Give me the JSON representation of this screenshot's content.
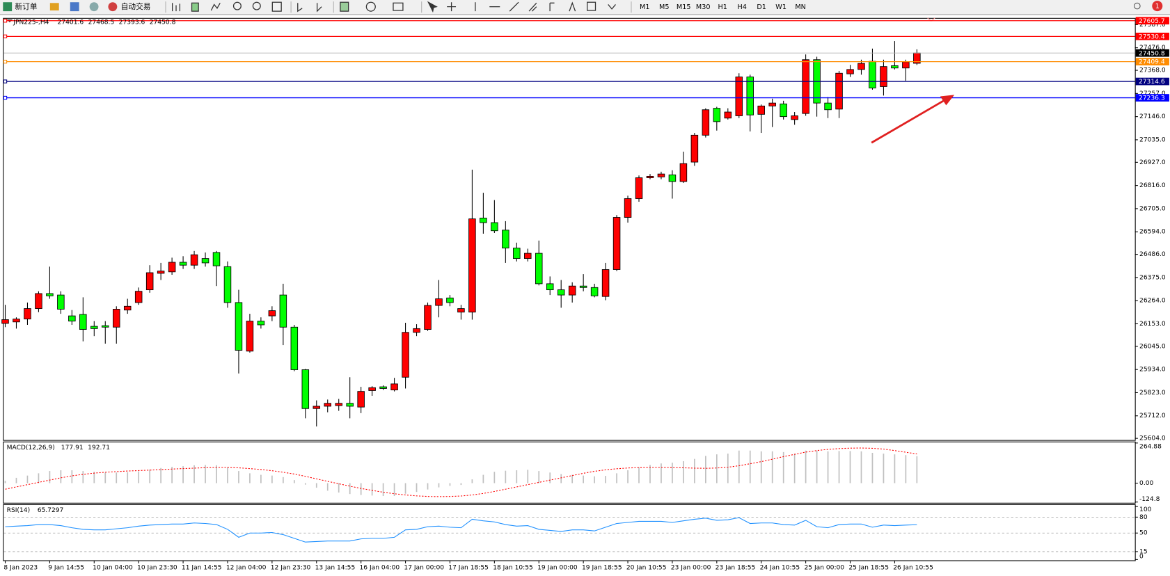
{
  "toolbar": {
    "new_order": "新订单",
    "auto_trading": "自动交易",
    "timeframes": [
      "M1",
      "M5",
      "M15",
      "M30",
      "H1",
      "H4",
      "D1",
      "W1",
      "MN"
    ],
    "badge": "1"
  },
  "chart_data": [
    {
      "type": "candlestick",
      "title": "JPN225-,H4",
      "categories": [
        "8 Jan 2023",
        null,
        null,
        null,
        "9 Jan 14:55",
        null,
        null,
        null,
        "10 Jan 04:00",
        null,
        null,
        null,
        "10 Jan 23:30",
        null,
        null,
        null,
        "11 Jan 14:55",
        null,
        null,
        null,
        "12 Jan 04:00",
        null,
        null,
        null,
        "12 Jan 23:30",
        null,
        null,
        null,
        "13 Jan 14:55",
        null,
        null,
        null,
        "16 Jan 04:00",
        null,
        null,
        null,
        "17 Jan 00:00",
        null,
        null,
        null,
        "17 Jan 18:55",
        null,
        null,
        null,
        "18 Jan 10:55",
        null,
        null,
        null,
        "19 Jan 00:00",
        null,
        null,
        null,
        "19 Jan 18:55",
        null,
        null,
        null,
        "20 Jan 10:55",
        null,
        null,
        null,
        "23 Jan 00:00",
        null,
        null,
        null,
        "23 Jan 18:55",
        null,
        null,
        null,
        "24 Jan 10:55",
        null,
        null,
        null,
        "25 Jan 00:00",
        null,
        null,
        null,
        "25 Jan 18:55",
        null,
        null,
        null,
        "26 Jan 10:55",
        null,
        null
      ],
      "open": [
        26155,
        26162,
        26176,
        26226,
        26298,
        26291,
        26191,
        26198,
        26141,
        26144,
        26137,
        26219,
        26255,
        26316,
        26395,
        26402,
        26448,
        26434,
        26466,
        26495,
        26427,
        26255,
        26022,
        26166,
        26191,
        26291,
        26137,
        25933,
        25747,
        25758,
        25761,
        25772,
        25754,
        25833,
        25851,
        25836,
        25897,
        26112,
        26126,
        26241,
        26277,
        26209,
        26209,
        26660,
        26638,
        26602,
        26516,
        26466,
        26491,
        26345,
        26316,
        26291,
        26334,
        26327,
        26284,
        26413,
        26663,
        26753,
        26853,
        26857,
        26867,
        26835,
        26928,
        27057,
        27186,
        27139,
        27150,
        27336,
        27157,
        27197,
        27207,
        27132,
        27161,
        27419,
        27211,
        27182,
        27351,
        27372,
        27411,
        27290,
        27390,
        27379,
        27401.6
      ],
      "high": [
        26244,
        26184,
        26255,
        26309,
        26427,
        26309,
        26219,
        26280,
        26166,
        26166,
        26237,
        26273,
        26327,
        26434,
        26445,
        26470,
        26477,
        26502,
        26495,
        26502,
        26452,
        26316,
        26201,
        26184,
        26237,
        26345,
        26148,
        25937,
        25786,
        25790,
        25793,
        25897,
        25851,
        25854,
        25858,
        25894,
        26158,
        26151,
        26255,
        26363,
        26291,
        26244,
        26892,
        26781,
        26746,
        26645,
        26542,
        26513,
        26552,
        26380,
        26363,
        26352,
        26391,
        26345,
        26445,
        26674,
        26767,
        26864,
        26871,
        26882,
        26889,
        26978,
        27068,
        27186,
        27193,
        27186,
        27354,
        27347,
        27204,
        27232,
        27222,
        27168,
        27444,
        27433,
        27240,
        27365,
        27394,
        27419,
        27472,
        27419,
        27508,
        27419,
        27468.5
      ],
      "low": [
        26137,
        26130,
        26148,
        26209,
        26273,
        26201,
        26148,
        26069,
        26094,
        26058,
        26058,
        26201,
        26244,
        26302,
        26363,
        26388,
        26416,
        26416,
        26427,
        26334,
        26230,
        25915,
        26015,
        26130,
        26166,
        26051,
        25926,
        25700,
        25661,
        25729,
        25736,
        25700,
        25725,
        25808,
        25836,
        25829,
        25843,
        26094,
        26119,
        26184,
        26237,
        26173,
        26173,
        26585,
        26588,
        26445,
        26452,
        26452,
        26337,
        26291,
        26230,
        26255,
        26309,
        26280,
        26266,
        26406,
        26638,
        26738,
        26846,
        26846,
        26753,
        26828,
        26910,
        27046,
        27079,
        27132,
        27139,
        27075,
        27068,
        27096,
        27132,
        27107,
        27150,
        27146,
        27139,
        27139,
        27336,
        27347,
        27275,
        27247,
        27372,
        27318,
        27393.6
      ],
      "close": [
        26173,
        26176,
        26226,
        26298,
        26287,
        26223,
        26166,
        26126,
        26130,
        26137,
        26223,
        26237,
        26309,
        26398,
        26406,
        26448,
        26434,
        26484,
        26445,
        26431,
        26255,
        26026,
        26166,
        26148,
        26216,
        26137,
        25933,
        25747,
        25758,
        25772,
        25772,
        25758,
        25829,
        25847,
        25843,
        25865,
        26112,
        26130,
        26241,
        26273,
        26255,
        26226,
        26656,
        26638,
        26599,
        26516,
        26466,
        26491,
        26345,
        26316,
        26291,
        26334,
        26327,
        26287,
        26413,
        26663,
        26753,
        26853,
        26860,
        26871,
        26835,
        26921,
        27057,
        27179,
        27122,
        27168,
        27336,
        27154,
        27197,
        27211,
        27146,
        27150,
        27419,
        27211,
        27179,
        27354,
        27372,
        27401,
        27283,
        27386,
        27379,
        27408,
        27450.8
      ],
      "up_color": "#ff0000",
      "down_color": "#00ff00",
      "ylim": [
        25596,
        27619
      ],
      "yticks": [
        {
          "value": 27587,
          "label": "27587.0"
        },
        {
          "value": 27476,
          "label": "27476.0"
        },
        {
          "value": 27368,
          "label": "27368.0"
        },
        {
          "value": 27257,
          "label": "27257.0"
        },
        {
          "value": 27146,
          "label": "27146.0"
        },
        {
          "value": 27035,
          "label": "27035.0"
        },
        {
          "value": 26927,
          "label": "26927.0"
        },
        {
          "value": 26816,
          "label": "26816.0"
        },
        {
          "value": 26705,
          "label": "26705.0"
        },
        {
          "value": 26594,
          "label": "26594.0"
        },
        {
          "value": 26486,
          "label": "26486.0"
        },
        {
          "value": 26375,
          "label": "26375.0"
        },
        {
          "value": 26264,
          "label": "26264.0"
        },
        {
          "value": 26153,
          "label": "26153.0"
        },
        {
          "value": 26045,
          "label": "26045.0"
        },
        {
          "value": 25934,
          "label": "25934.0"
        },
        {
          "value": 25823,
          "label": "25823.0"
        },
        {
          "value": 25712,
          "label": "25712.0"
        },
        {
          "value": 25604,
          "label": "25604.0"
        }
      ],
      "levels": [
        {
          "value": 27605.7,
          "color": "#ff0000"
        },
        {
          "value": 27530.4,
          "color": "#ff0000"
        },
        {
          "value": 27409.4,
          "color": "#ff8c00"
        },
        {
          "value": 27314.6,
          "color": "#000080"
        },
        {
          "value": 27236.3,
          "color": "#0000ff"
        }
      ]
    },
    {
      "type": "macd",
      "title": "MACD(12,26,9)",
      "series": [
        {
          "color": "#c0c0c0",
          "style": "bar",
          "values": [
            15,
            35,
            50,
            65,
            80,
            85,
            85,
            80,
            75,
            70,
            70,
            72,
            78,
            90,
            100,
            108,
            112,
            118,
            120,
            118,
            105,
            80,
            65,
            55,
            50,
            40,
            20,
            -10,
            -30,
            -50,
            -62,
            -72,
            -78,
            -82,
            -85,
            -85,
            -70,
            -58,
            -42,
            -28,
            -18,
            -12,
            25,
            55,
            75,
            82,
            85,
            88,
            80,
            70,
            60,
            55,
            50,
            45,
            48,
            65,
            85,
            105,
            120,
            130,
            135,
            145,
            160,
            180,
            190,
            195,
            215,
            215,
            210,
            210,
            205,
            195,
            215,
            215,
            210,
            212,
            212,
            210,
            200,
            195,
            190,
            185,
            177.91
          ]
        },
        {
          "color": "#ff0000",
          "style": "dotted",
          "values": [
            -40,
            -25,
            -10,
            5,
            20,
            35,
            48,
            58,
            66,
            72,
            76,
            80,
            83,
            86,
            89,
            93,
            96,
            99,
            102,
            104,
            104,
            101,
            96,
            90,
            82,
            72,
            60,
            45,
            28,
            12,
            -4,
            -20,
            -35,
            -48,
            -60,
            -70,
            -78,
            -84,
            -88,
            -89,
            -88,
            -85,
            -78,
            -68,
            -55,
            -40,
            -25,
            -10,
            5,
            20,
            35,
            50,
            65,
            78,
            88,
            95,
            100,
            103,
            104,
            104,
            103,
            101,
            99,
            98,
            100,
            105,
            115,
            128,
            142,
            158,
            175,
            190,
            205,
            215,
            223,
            228,
            231,
            232,
            230,
            225,
            215,
            204,
            192.71
          ]
        }
      ],
      "ylim": [
        -124.8,
        264.88
      ],
      "yticks": [
        264.88,
        {
          "value": 0,
          "label": "0.00"
        },
        -124.8
      ]
    },
    {
      "type": "line",
      "title": "RSI(14)",
      "series": [
        {
          "color": "#1e90ff",
          "values": [
            62,
            63,
            64,
            66,
            66,
            64,
            60,
            57,
            56,
            56,
            58,
            60,
            63,
            65,
            66,
            67,
            67,
            69,
            68,
            66,
            57,
            42,
            50,
            50,
            51,
            47,
            40,
            33,
            34,
            35,
            35,
            35,
            39,
            40,
            40,
            42,
            56,
            57,
            62,
            63,
            61,
            60,
            76,
            73,
            71,
            66,
            63,
            64,
            57,
            55,
            53,
            56,
            56,
            54,
            61,
            68,
            70,
            72,
            72,
            72,
            70,
            73,
            76,
            78,
            74,
            75,
            79,
            68,
            69,
            69,
            66,
            65,
            74,
            62,
            60,
            66,
            67,
            67,
            61,
            65,
            64,
            65,
            65.7297
          ]
        }
      ],
      "ylim": [
        0,
        100
      ],
      "yticks": [
        100,
        80,
        50,
        15,
        0
      ]
    }
  ]
}
